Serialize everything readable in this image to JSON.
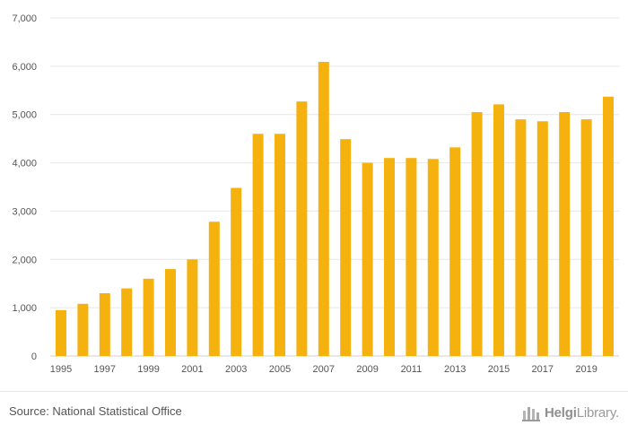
{
  "chart_data": {
    "type": "bar",
    "title": "",
    "xlabel": "",
    "ylabel": "",
    "ylim": [
      0,
      7000
    ],
    "yticks": [
      0,
      1000,
      2000,
      3000,
      4000,
      5000,
      6000,
      7000
    ],
    "ytick_labels": [
      "0",
      "1,000",
      "2,000",
      "3,000",
      "4,000",
      "5,000",
      "6,000",
      "7,000"
    ],
    "categories": [
      "1995",
      "1996",
      "1997",
      "1998",
      "1999",
      "2000",
      "2001",
      "2002",
      "2003",
      "2004",
      "2005",
      "2006",
      "2007",
      "2008",
      "2009",
      "2010",
      "2011",
      "2012",
      "2013",
      "2014",
      "2015",
      "2016",
      "2017",
      "2018",
      "2019",
      "2020"
    ],
    "xtick_labels": [
      "1995",
      "",
      "1997",
      "",
      "1999",
      "",
      "2001",
      "",
      "2003",
      "",
      "2005",
      "",
      "2007",
      "",
      "2009",
      "",
      "2011",
      "",
      "2013",
      "",
      "2015",
      "",
      "2017",
      "",
      "2019",
      ""
    ],
    "values": [
      950,
      1080,
      1300,
      1400,
      1600,
      1800,
      2000,
      2780,
      3480,
      4600,
      4600,
      5270,
      6090,
      4490,
      4000,
      4100,
      4100,
      4080,
      4320,
      5050,
      5210,
      4900,
      4860,
      5050,
      4900,
      5370
    ],
    "bar_color": "#f5b10d",
    "grid": true
  },
  "footer": {
    "source": "Source: National Statistical Office",
    "logo_brand": "Helgi",
    "logo_suffix": "Library."
  },
  "colors": {
    "bar": "#f5b10d",
    "grid": "#e6e6e6",
    "text": "#555555"
  }
}
